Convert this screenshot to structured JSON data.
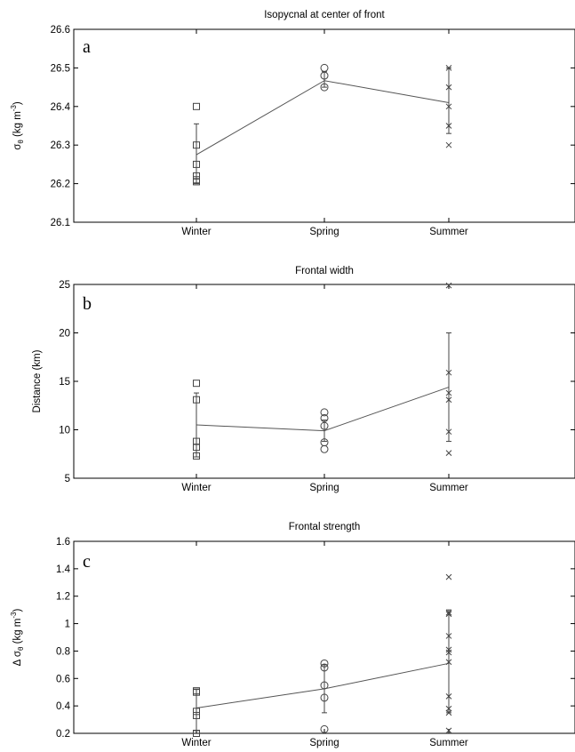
{
  "chart_data": [
    {
      "type": "scatter",
      "panel_label": "a",
      "title": "Isopycnal at center of front",
      "xlabel": "",
      "ylabel": {
        "symbol": "σ",
        "subscript": "θ",
        "text": " (kg m",
        "superscript": "-3",
        "close": ")"
      },
      "categories": [
        "Winter",
        "Spring",
        "Summer"
      ],
      "ylim": [
        26.1,
        26.6
      ],
      "yticks": [
        "26.1",
        "26.2",
        "26.3",
        "26.4",
        "26.5",
        "26.6"
      ],
      "series": [
        {
          "category": "Winter",
          "marker": "square",
          "points": [
            26.4,
            26.3,
            26.25,
            26.22,
            26.21,
            26.205
          ]
        },
        {
          "category": "Spring",
          "marker": "circle",
          "points": [
            26.5,
            26.48,
            26.45
          ]
        },
        {
          "category": "Summer",
          "marker": "x",
          "points": [
            26.5,
            26.45,
            26.4,
            26.35,
            26.3
          ]
        }
      ],
      "mean_line": [
        26.275,
        26.467,
        26.41
      ],
      "error_bars": [
        {
          "category": "Winter",
          "low": 26.2,
          "high": 26.355
        },
        {
          "category": "Spring",
          "low": 26.45,
          "high": 26.49
        },
        {
          "category": "Summer",
          "low": 26.33,
          "high": 26.5
        }
      ],
      "grid": false
    },
    {
      "type": "scatter",
      "panel_label": "b",
      "title": "Frontal width",
      "xlabel": "",
      "ylabel": {
        "symbol": "",
        "subscript": "",
        "text": "Distance (km)",
        "superscript": "",
        "close": ""
      },
      "categories": [
        "Winter",
        "Spring",
        "Summer"
      ],
      "ylim": [
        5,
        25
      ],
      "yticks": [
        "5",
        "10",
        "15",
        "20",
        "25"
      ],
      "series": [
        {
          "category": "Winter",
          "marker": "square",
          "points": [
            14.8,
            13.1,
            8.8,
            8.2,
            7.3
          ]
        },
        {
          "category": "Spring",
          "marker": "circle",
          "points": [
            11.8,
            11.2,
            10.4,
            8.7,
            8.0
          ]
        },
        {
          "category": "Summer",
          "marker": "x",
          "points": [
            24.9,
            15.9,
            13.8,
            13.1,
            9.8,
            7.6
          ]
        }
      ],
      "mean_line": [
        10.5,
        9.9,
        14.4
      ],
      "error_bars": [
        {
          "category": "Winter",
          "low": 7.2,
          "high": 13.8
        },
        {
          "category": "Spring",
          "low": 8.8,
          "high": 11.0
        },
        {
          "category": "Summer",
          "low": 8.8,
          "high": 20.0
        }
      ],
      "grid": false
    },
    {
      "type": "scatter",
      "panel_label": "c",
      "title": "Frontal strength",
      "xlabel": "",
      "ylabel": {
        "symbol": "Δ σ",
        "subscript": "θ",
        "text": " (kg m",
        "superscript": "-3",
        "close": ")"
      },
      "categories": [
        "Winter",
        "Spring",
        "Summer"
      ],
      "ylim": [
        0.2,
        1.6
      ],
      "yticks": [
        "0.2",
        "0.4",
        "0.6",
        "0.8",
        "1",
        "1.2",
        "1.4",
        "1.6"
      ],
      "series": [
        {
          "category": "Winter",
          "marker": "square",
          "points": [
            0.51,
            0.5,
            0.36,
            0.33,
            0.2
          ]
        },
        {
          "category": "Spring",
          "marker": "circle",
          "points": [
            0.71,
            0.68,
            0.55,
            0.46,
            0.23
          ]
        },
        {
          "category": "Summer",
          "marker": "x",
          "points": [
            1.34,
            1.08,
            1.07,
            0.91,
            0.81,
            0.79,
            0.72,
            0.47,
            0.38,
            0.35,
            0.22
          ]
        }
      ],
      "mean_line": [
        0.385,
        0.525,
        0.71
      ],
      "error_bars": [
        {
          "category": "Winter",
          "low": 0.22,
          "high": 0.52
        },
        {
          "category": "Spring",
          "low": 0.35,
          "high": 0.7
        },
        {
          "category": "Summer",
          "low": 0.35,
          "high": 1.1
        }
      ],
      "grid": false
    }
  ]
}
